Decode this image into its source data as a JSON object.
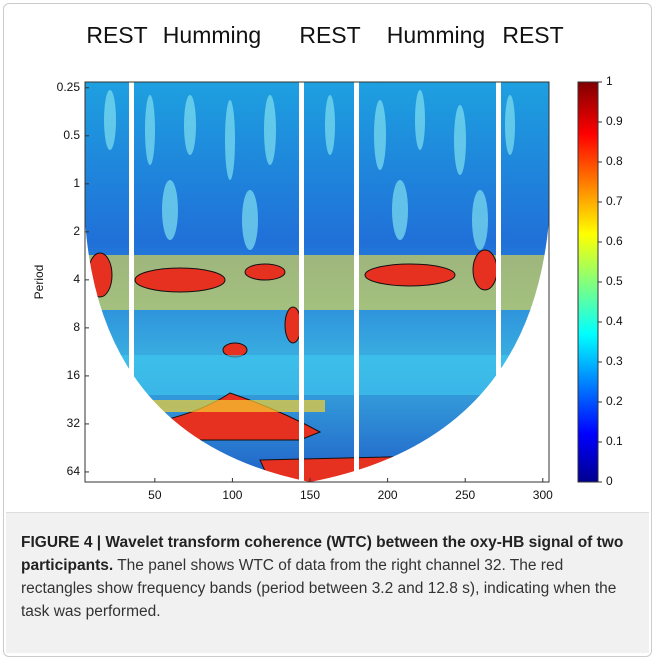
{
  "chart_data": {
    "type": "heatmap",
    "conditions": [
      "REST",
      "Humming",
      "REST",
      "Humming",
      "REST"
    ],
    "ylabel": "Period",
    "yscale": "log",
    "ylim": [
      0.23,
      74
    ],
    "yticks": [
      0.25,
      0.5,
      1,
      2,
      4,
      8,
      16,
      32,
      64
    ],
    "xlim": [
      5,
      304
    ],
    "xticks": [
      50,
      100,
      150,
      200,
      250,
      300
    ],
    "colorbar": {
      "lim": [
        0,
        1
      ],
      "ticks": [
        0,
        0.1,
        0.2,
        0.3,
        0.4,
        0.5,
        0.6,
        0.7,
        0.8,
        0.9,
        1
      ]
    }
  },
  "caption": {
    "label": "FIGURE 4 | Wavelet transform coherence (WTC) between the oxy-HB signal of two participants.",
    "text": "The panel shows WTC of data from the right channel 32. The red rectangles show frequency bands (period between 3.2 and 12.8 s), indicating when the task was performed."
  }
}
